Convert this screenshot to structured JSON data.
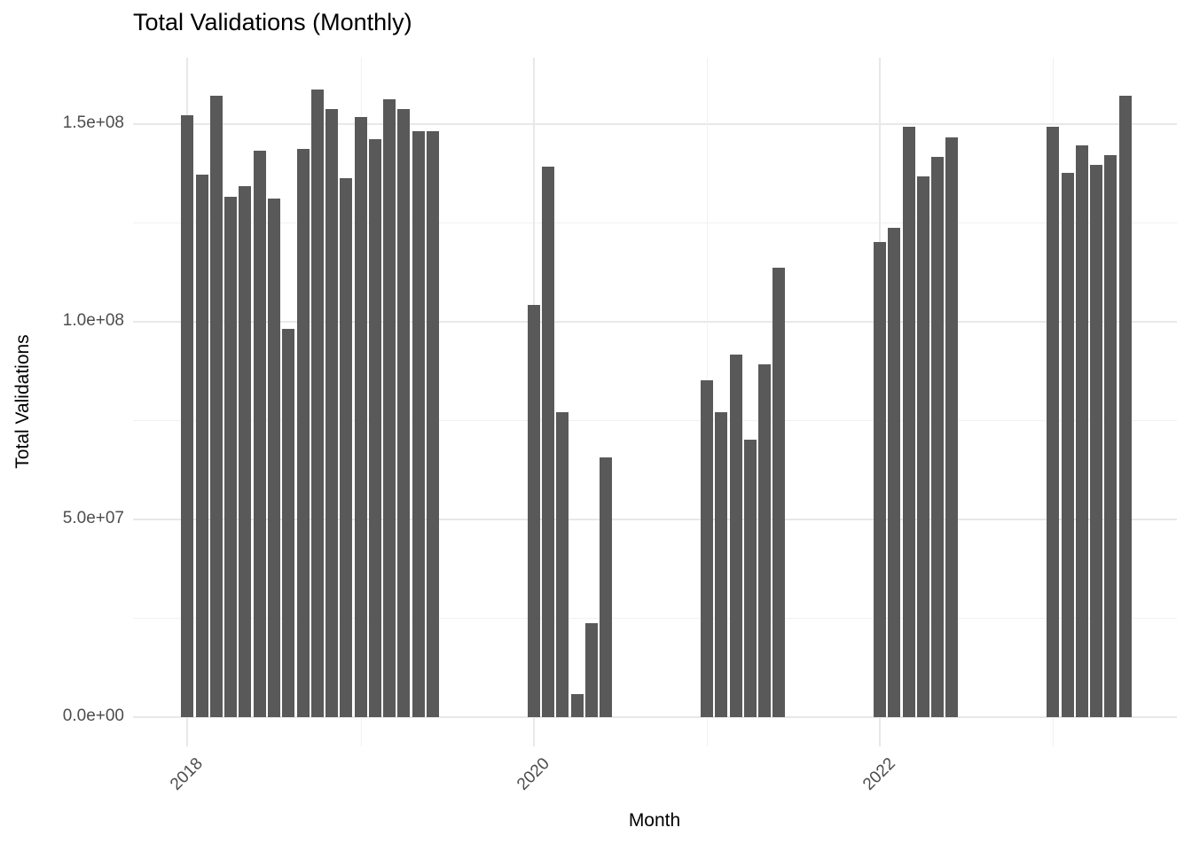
{
  "chart_data": {
    "type": "bar",
    "title": "Total Validations (Monthly)",
    "xlabel": "Month",
    "ylabel": "Total Validations",
    "bar_color": "#595959",
    "grid_major_color": "#e8e8e8",
    "grid_minor_color": "#f1f1f1",
    "tick_label_color": "#4d4d4d",
    "ylim": [
      0,
      166500000
    ],
    "legend": "none",
    "grid": "on",
    "y_major_ticks": [
      {
        "label": "0.0e+00",
        "value": 0
      },
      {
        "label": "5.0e+07",
        "value": 50000000
      },
      {
        "label": "1.0e+08",
        "value": 100000000
      },
      {
        "label": "1.5e+08",
        "value": 150000000
      }
    ],
    "y_minor_values": [
      25000000,
      75000000,
      125000000
    ],
    "x_major_ticks": [
      {
        "label": "2018",
        "month": "2018-01"
      },
      {
        "label": "2020",
        "month": "2020-01"
      },
      {
        "label": "2022",
        "month": "2022-01"
      }
    ],
    "x_minor_months": [
      "2019-01",
      "2021-01",
      "2023-01"
    ],
    "series": [
      {
        "name": "Total Validations",
        "points": [
          {
            "month": "2018-01",
            "value": 152000000
          },
          {
            "month": "2018-02",
            "value": 137000000
          },
          {
            "month": "2018-03",
            "value": 157000000
          },
          {
            "month": "2018-04",
            "value": 131500000
          },
          {
            "month": "2018-05",
            "value": 134000000
          },
          {
            "month": "2018-06",
            "value": 143000000
          },
          {
            "month": "2018-07",
            "value": 131000000
          },
          {
            "month": "2018-08",
            "value": 98000000
          },
          {
            "month": "2018-09",
            "value": 143500000
          },
          {
            "month": "2018-10",
            "value": 158500000
          },
          {
            "month": "2018-11",
            "value": 153500000
          },
          {
            "month": "2018-12",
            "value": 136000000
          },
          {
            "month": "2019-01",
            "value": 151500000
          },
          {
            "month": "2019-02",
            "value": 146000000
          },
          {
            "month": "2019-03",
            "value": 156000000
          },
          {
            "month": "2019-04",
            "value": 153500000
          },
          {
            "month": "2019-05",
            "value": 148000000
          },
          {
            "month": "2019-06",
            "value": 148000000
          },
          {
            "month": "2020-01",
            "value": 104000000
          },
          {
            "month": "2020-02",
            "value": 139000000
          },
          {
            "month": "2020-03",
            "value": 77000000
          },
          {
            "month": "2020-04",
            "value": 5500000
          },
          {
            "month": "2020-05",
            "value": 23500000
          },
          {
            "month": "2020-06",
            "value": 65500000
          },
          {
            "month": "2021-01",
            "value": 85000000
          },
          {
            "month": "2021-02",
            "value": 77000000
          },
          {
            "month": "2021-03",
            "value": 91500000
          },
          {
            "month": "2021-04",
            "value": 70000000
          },
          {
            "month": "2021-05",
            "value": 89000000
          },
          {
            "month": "2021-06",
            "value": 113500000
          },
          {
            "month": "2022-01",
            "value": 120000000
          },
          {
            "month": "2022-02",
            "value": 123500000
          },
          {
            "month": "2022-03",
            "value": 149000000
          },
          {
            "month": "2022-04",
            "value": 136500000
          },
          {
            "month": "2022-05",
            "value": 141500000
          },
          {
            "month": "2022-06",
            "value": 146500000
          },
          {
            "month": "2023-01",
            "value": 149000000
          },
          {
            "month": "2023-02",
            "value": 137500000
          },
          {
            "month": "2023-03",
            "value": 144500000
          },
          {
            "month": "2023-04",
            "value": 139500000
          },
          {
            "month": "2023-05",
            "value": 142000000
          },
          {
            "month": "2023-06",
            "value": 157000000
          }
        ]
      }
    ]
  }
}
